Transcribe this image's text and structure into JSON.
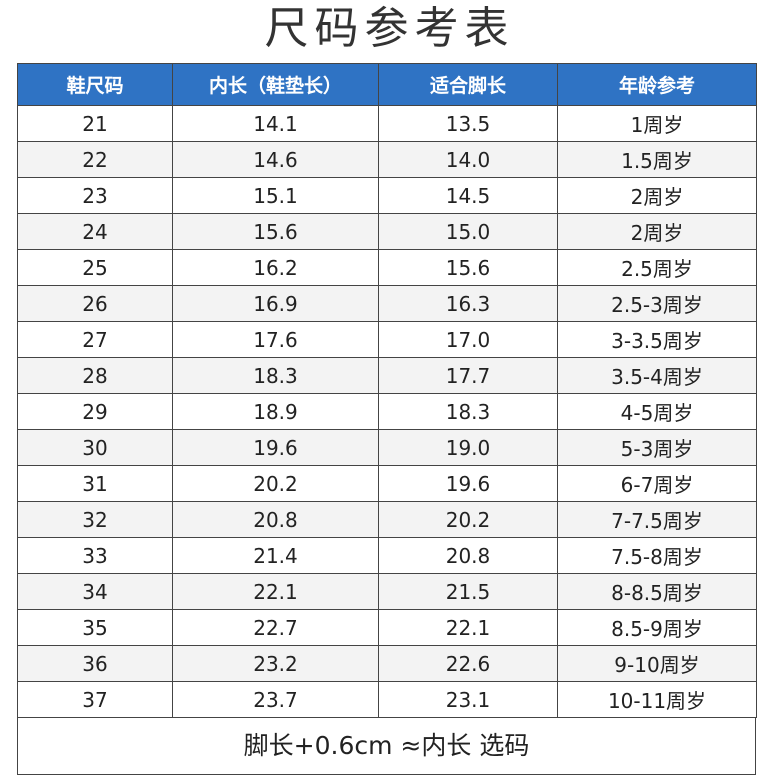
{
  "title": "尺码参考表",
  "table": {
    "header": [
      "鞋尺码",
      "内长（鞋垫长）",
      "适合脚长",
      "年龄参考"
    ],
    "rows": [
      [
        "21",
        "14.1",
        "13.5",
        "1周岁"
      ],
      [
        "22",
        "14.6",
        "14.0",
        "1.5周岁"
      ],
      [
        "23",
        "15.1",
        "14.5",
        "2周岁"
      ],
      [
        "24",
        "15.6",
        "15.0",
        "2周岁"
      ],
      [
        "25",
        "16.2",
        "15.6",
        "2.5周岁"
      ],
      [
        "26",
        "16.9",
        "16.3",
        "2.5-3周岁"
      ],
      [
        "27",
        "17.6",
        "17.0",
        "3-3.5周岁"
      ],
      [
        "28",
        "18.3",
        "17.7",
        "3.5-4周岁"
      ],
      [
        "29",
        "18.9",
        "18.3",
        "4-5周岁"
      ],
      [
        "30",
        "19.6",
        "19.0",
        "5-3周岁"
      ],
      [
        "31",
        "20.2",
        "19.6",
        "6-7周岁"
      ],
      [
        "32",
        "20.8",
        "20.2",
        "7-7.5周岁"
      ],
      [
        "33",
        "21.4",
        "20.8",
        "7.5-8周岁"
      ],
      [
        "34",
        "22.1",
        "21.5",
        "8-8.5周岁"
      ],
      [
        "35",
        "22.7",
        "22.1",
        "8.5-9周岁"
      ],
      [
        "36",
        "23.2",
        "22.6",
        "9-10周岁"
      ],
      [
        "37",
        "23.7",
        "23.1",
        "10-11周岁"
      ]
    ]
  },
  "footer": "脚长+0.6cm ≈内长 选码"
}
